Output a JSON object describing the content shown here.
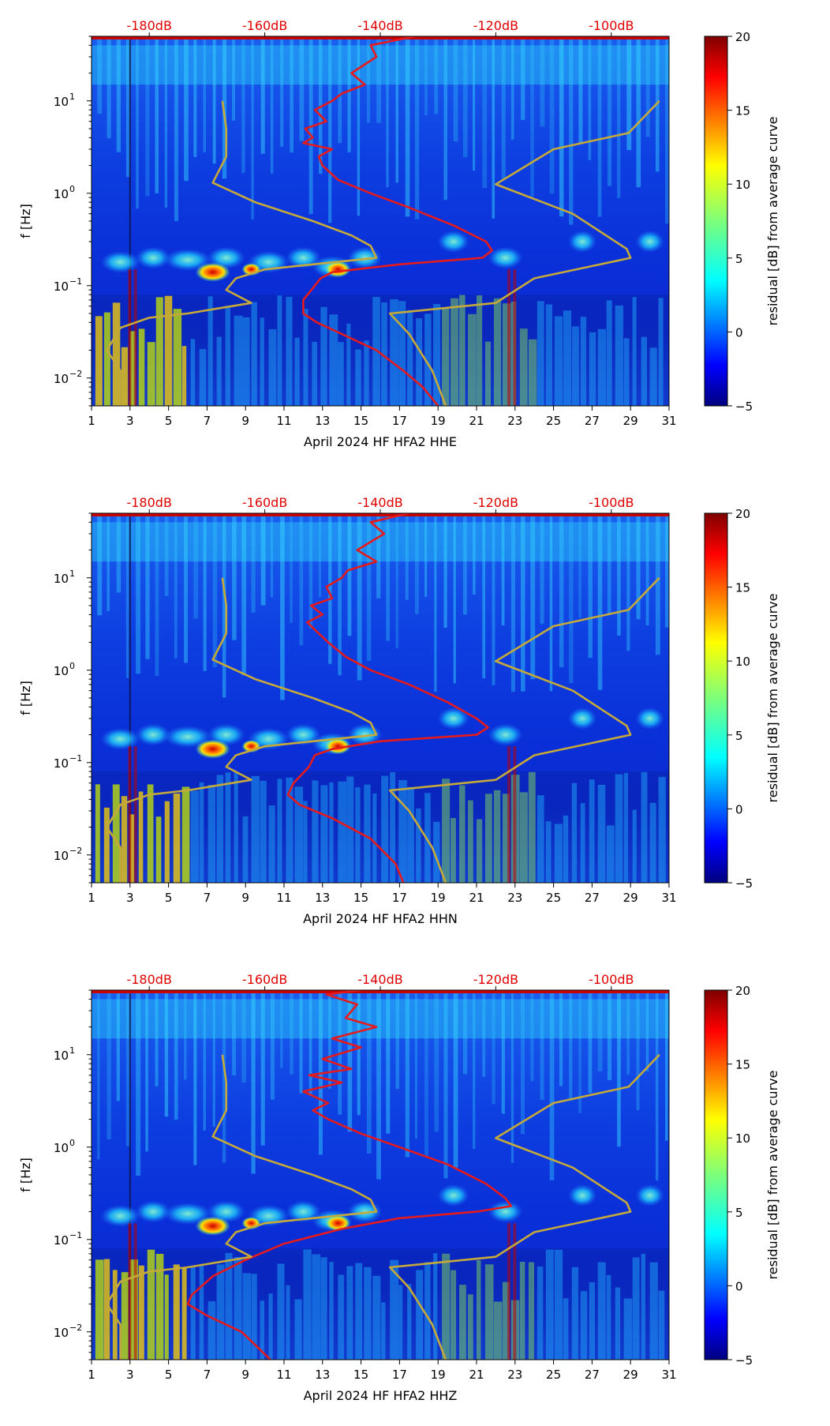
{
  "chart_data": [
    {
      "type": "heatmap",
      "id": "HHE",
      "xlabel": "April 2024 HF HFA2  HHE",
      "ylabel": "f [Hz]",
      "x_range": [
        1,
        31
      ],
      "x_ticks": [
        "1",
        "3",
        "5",
        "7",
        "9",
        "11",
        "13",
        "15",
        "17",
        "19",
        "21",
        "23",
        "25",
        "27",
        "29",
        "31"
      ],
      "y_range_hz": [
        0.005,
        50
      ],
      "y_ticks": [
        {
          "value": 0.01,
          "base": "10",
          "exp": "−2"
        },
        {
          "value": 0.1,
          "base": "10",
          "exp": "−1"
        },
        {
          "value": 1,
          "base": "10",
          "exp": "0"
        },
        {
          "value": 10,
          "base": "10",
          "exp": "1"
        }
      ],
      "top_axis": {
        "labels": [
          "-180dB",
          "-160dB",
          "-140dB",
          "-120dB",
          "-100dB"
        ],
        "positions_day": [
          4,
          10,
          16,
          22,
          28
        ]
      },
      "colorbar": {
        "label": "residual [dB] from average curve",
        "min": -5,
        "max": 20,
        "ticks": [
          "−5",
          "0",
          "5",
          "10",
          "15",
          "20"
        ]
      },
      "series": [
        {
          "name": "average PSD curve",
          "color": "#e41a1c",
          "points": [
            [
              17.8,
              50
            ],
            [
              15.5,
              40
            ],
            [
              15.8,
              30
            ],
            [
              14.5,
              20
            ],
            [
              15.2,
              15
            ],
            [
              14.0,
              12
            ],
            [
              13.5,
              10
            ],
            [
              12.6,
              8
            ],
            [
              13.2,
              6
            ],
            [
              12.1,
              5
            ],
            [
              12.5,
              4
            ],
            [
              12.0,
              3.5
            ],
            [
              13.5,
              3
            ],
            [
              12.8,
              2.5
            ],
            [
              13.0,
              2.0
            ],
            [
              13.8,
              1.4
            ],
            [
              15.5,
              1.0
            ],
            [
              17.5,
              0.7
            ],
            [
              19.8,
              0.45
            ],
            [
              21.5,
              0.3
            ],
            [
              21.8,
              0.24
            ],
            [
              21.3,
              0.2
            ],
            [
              17.0,
              0.17
            ],
            [
              13.5,
              0.14
            ],
            [
              12.9,
              0.12
            ],
            [
              12.6,
              0.1
            ],
            [
              12.0,
              0.07
            ],
            [
              12.0,
              0.05
            ],
            [
              12.7,
              0.04
            ],
            [
              14.0,
              0.03
            ],
            [
              15.8,
              0.02
            ],
            [
              17.2,
              0.012
            ],
            [
              18.2,
              0.008
            ],
            [
              19.0,
              0.005
            ]
          ]
        },
        {
          "name": "low noise model",
          "color": "#c5a93a",
          "points": [
            [
              7.8,
              10
            ],
            [
              8.0,
              5
            ],
            [
              8.0,
              2.5
            ],
            [
              7.3,
              1.3
            ],
            [
              9.5,
              0.8
            ],
            [
              12.5,
              0.5
            ],
            [
              14.5,
              0.35
            ],
            [
              15.5,
              0.27
            ],
            [
              15.8,
              0.2
            ],
            [
              12.5,
              0.17
            ],
            [
              10.0,
              0.15
            ],
            [
              8.5,
              0.12
            ],
            [
              8.0,
              0.09
            ],
            [
              9.3,
              0.065
            ],
            [
              6.0,
              0.05
            ],
            [
              4.0,
              0.045
            ],
            [
              2.5,
              0.035
            ],
            [
              1.8,
              0.02
            ],
            [
              2.5,
              0.012
            ],
            [
              2.5,
              0.005
            ]
          ]
        },
        {
          "name": "high noise model",
          "color": "#c5a93a",
          "points": [
            [
              30.5,
              10
            ],
            [
              28.9,
              4.5
            ],
            [
              25.0,
              3.0
            ],
            [
              22.0,
              1.25
            ],
            [
              26.0,
              0.6
            ],
            [
              28.8,
              0.25
            ],
            [
              29.0,
              0.2
            ],
            [
              24.0,
              0.12
            ],
            [
              22.0,
              0.065
            ],
            [
              16.5,
              0.05
            ],
            [
              17.5,
              0.03
            ],
            [
              18.7,
              0.012
            ],
            [
              19.4,
              0.005
            ]
          ]
        }
      ]
    },
    {
      "type": "heatmap",
      "id": "HHN",
      "xlabel": "April 2024 HF HFA2  HHN",
      "ylabel": "f [Hz]",
      "x_range": [
        1,
        31
      ],
      "x_ticks": [
        "1",
        "3",
        "5",
        "7",
        "9",
        "11",
        "13",
        "15",
        "17",
        "19",
        "21",
        "23",
        "25",
        "27",
        "29",
        "31"
      ],
      "y_range_hz": [
        0.005,
        50
      ],
      "y_ticks": [
        {
          "value": 0.01,
          "base": "10",
          "exp": "−2"
        },
        {
          "value": 0.1,
          "base": "10",
          "exp": "−1"
        },
        {
          "value": 1,
          "base": "10",
          "exp": "0"
        },
        {
          "value": 10,
          "base": "10",
          "exp": "1"
        }
      ],
      "top_axis": {
        "labels": [
          "-180dB",
          "-160dB",
          "-140dB",
          "-120dB",
          "-100dB"
        ],
        "positions_day": [
          4,
          10,
          16,
          22,
          28
        ]
      },
      "colorbar": {
        "label": "residual [dB] from average curve",
        "min": -5,
        "max": 20,
        "ticks": [
          "−5",
          "0",
          "5",
          "10",
          "15",
          "20"
        ]
      },
      "series": [
        {
          "name": "average PSD curve",
          "color": "#e41a1c",
          "points": [
            [
              17.5,
              50
            ],
            [
              15.5,
              40
            ],
            [
              16.2,
              30
            ],
            [
              14.8,
              20
            ],
            [
              15.8,
              15
            ],
            [
              14.3,
              12
            ],
            [
              14.0,
              10
            ],
            [
              13.2,
              8
            ],
            [
              13.5,
              6
            ],
            [
              12.4,
              5
            ],
            [
              13.0,
              4
            ],
            [
              12.2,
              3.3
            ],
            [
              12.8,
              2.5
            ],
            [
              13.3,
              2.0
            ],
            [
              14.2,
              1.4
            ],
            [
              15.5,
              1.0
            ],
            [
              17.5,
              0.7
            ],
            [
              19.5,
              0.45
            ],
            [
              21.0,
              0.3
            ],
            [
              21.6,
              0.24
            ],
            [
              21.0,
              0.2
            ],
            [
              16.0,
              0.17
            ],
            [
              13.5,
              0.14
            ],
            [
              12.6,
              0.12
            ],
            [
              12.3,
              0.09
            ],
            [
              11.5,
              0.06
            ],
            [
              11.2,
              0.045
            ],
            [
              11.8,
              0.035
            ],
            [
              13.5,
              0.025
            ],
            [
              15.5,
              0.015
            ],
            [
              16.8,
              0.008
            ],
            [
              17.2,
              0.005
            ]
          ]
        },
        {
          "name": "low noise model",
          "color": "#c5a93a",
          "points": [
            [
              7.8,
              10
            ],
            [
              8.0,
              5
            ],
            [
              8.0,
              2.5
            ],
            [
              7.3,
              1.3
            ],
            [
              9.5,
              0.8
            ],
            [
              12.5,
              0.5
            ],
            [
              14.5,
              0.35
            ],
            [
              15.5,
              0.27
            ],
            [
              15.8,
              0.2
            ],
            [
              12.5,
              0.17
            ],
            [
              10.0,
              0.15
            ],
            [
              8.5,
              0.12
            ],
            [
              8.0,
              0.09
            ],
            [
              9.3,
              0.065
            ],
            [
              6.0,
              0.05
            ],
            [
              4.0,
              0.045
            ],
            [
              2.5,
              0.035
            ],
            [
              1.8,
              0.02
            ],
            [
              2.5,
              0.012
            ],
            [
              2.5,
              0.005
            ]
          ]
        },
        {
          "name": "high noise model",
          "color": "#c5a93a",
          "points": [
            [
              30.5,
              10
            ],
            [
              28.9,
              4.5
            ],
            [
              25.0,
              3.0
            ],
            [
              22.0,
              1.25
            ],
            [
              26.0,
              0.6
            ],
            [
              28.8,
              0.25
            ],
            [
              29.0,
              0.2
            ],
            [
              24.0,
              0.12
            ],
            [
              22.0,
              0.065
            ],
            [
              16.5,
              0.05
            ],
            [
              17.5,
              0.03
            ],
            [
              18.7,
              0.012
            ],
            [
              19.4,
              0.005
            ]
          ]
        }
      ]
    },
    {
      "type": "heatmap",
      "id": "HHZ",
      "xlabel": "April 2024 HF HFA2  HHZ",
      "ylabel": "f [Hz]",
      "x_range": [
        1,
        31
      ],
      "x_ticks": [
        "1",
        "3",
        "5",
        "7",
        "9",
        "11",
        "13",
        "15",
        "17",
        "19",
        "21",
        "23",
        "25",
        "27",
        "29",
        "31"
      ],
      "y_range_hz": [
        0.005,
        50
      ],
      "y_ticks": [
        {
          "value": 0.01,
          "base": "10",
          "exp": "−2"
        },
        {
          "value": 0.1,
          "base": "10",
          "exp": "−1"
        },
        {
          "value": 1,
          "base": "10",
          "exp": "0"
        },
        {
          "value": 10,
          "base": "10",
          "exp": "1"
        }
      ],
      "top_axis": {
        "labels": [
          "-180dB",
          "-160dB",
          "-140dB",
          "-120dB",
          "-100dB"
        ],
        "positions_day": [
          4,
          10,
          16,
          22,
          28
        ]
      },
      "colorbar": {
        "label": "residual [dB] from average curve",
        "min": -5,
        "max": 20,
        "ticks": [
          "−5",
          "0",
          "5",
          "10",
          "15",
          "20"
        ]
      },
      "series": [
        {
          "name": "average PSD curve",
          "color": "#e41a1c",
          "points": [
            [
              15.0,
              50
            ],
            [
              13.2,
              45
            ],
            [
              14.8,
              35
            ],
            [
              14.2,
              25
            ],
            [
              15.8,
              20
            ],
            [
              13.5,
              15
            ],
            [
              15.0,
              12
            ],
            [
              13.0,
              9
            ],
            [
              14.5,
              7
            ],
            [
              12.3,
              6
            ],
            [
              14.0,
              5
            ],
            [
              12.0,
              4
            ],
            [
              13.3,
              3
            ],
            [
              12.5,
              2.5
            ],
            [
              13.3,
              2.0
            ],
            [
              15.0,
              1.4
            ],
            [
              17.0,
              1.0
            ],
            [
              19.5,
              0.65
            ],
            [
              21.5,
              0.4
            ],
            [
              22.5,
              0.28
            ],
            [
              22.8,
              0.23
            ],
            [
              21.0,
              0.2
            ],
            [
              17.0,
              0.17
            ],
            [
              14.0,
              0.13
            ],
            [
              11.0,
              0.09
            ],
            [
              9.0,
              0.06
            ],
            [
              7.3,
              0.04
            ],
            [
              6.2,
              0.025
            ],
            [
              6.0,
              0.02
            ],
            [
              7.0,
              0.015
            ],
            [
              8.8,
              0.01
            ],
            [
              10.3,
              0.005
            ]
          ]
        },
        {
          "name": "low noise model",
          "color": "#c5a93a",
          "points": [
            [
              7.8,
              10
            ],
            [
              8.0,
              5
            ],
            [
              8.0,
              2.5
            ],
            [
              7.3,
              1.3
            ],
            [
              9.5,
              0.8
            ],
            [
              12.5,
              0.5
            ],
            [
              14.5,
              0.35
            ],
            [
              15.5,
              0.27
            ],
            [
              15.8,
              0.2
            ],
            [
              12.5,
              0.17
            ],
            [
              10.0,
              0.15
            ],
            [
              8.5,
              0.12
            ],
            [
              8.0,
              0.09
            ],
            [
              9.3,
              0.065
            ],
            [
              6.0,
              0.05
            ],
            [
              4.0,
              0.045
            ],
            [
              2.5,
              0.035
            ],
            [
              1.8,
              0.02
            ],
            [
              2.5,
              0.012
            ],
            [
              2.5,
              0.005
            ]
          ]
        },
        {
          "name": "high noise model",
          "color": "#c5a93a",
          "points": [
            [
              30.5,
              10
            ],
            [
              28.9,
              4.5
            ],
            [
              25.0,
              3.0
            ],
            [
              22.0,
              1.25
            ],
            [
              26.0,
              0.6
            ],
            [
              28.8,
              0.25
            ],
            [
              29.0,
              0.2
            ],
            [
              24.0,
              0.12
            ],
            [
              22.0,
              0.065
            ],
            [
              16.5,
              0.05
            ],
            [
              17.5,
              0.03
            ],
            [
              18.7,
              0.012
            ],
            [
              19.4,
              0.005
            ]
          ]
        }
      ]
    }
  ]
}
